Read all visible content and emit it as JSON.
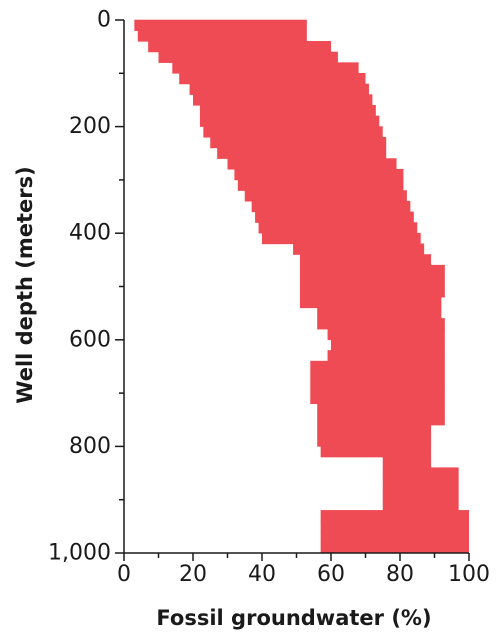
{
  "chart_data": {
    "type": "area",
    "title": "",
    "xlabel": "Fossil groundwater (%)",
    "ylabel": "Well depth (meters)",
    "xlim": [
      0,
      100
    ],
    "ylim": [
      0,
      1000
    ],
    "y_inverted": true,
    "x_ticks": [
      "0",
      "20",
      "40",
      "60",
      "80",
      "100"
    ],
    "y_ticks": [
      "0",
      "200",
      "400",
      "600",
      "800",
      "1,000"
    ],
    "fill_color": "#ef4b54",
    "bin_size_m": 20,
    "depth_top_m": [
      0,
      20,
      40,
      60,
      80,
      100,
      120,
      140,
      160,
      180,
      200,
      220,
      240,
      260,
      280,
      300,
      320,
      340,
      360,
      380,
      400,
      420,
      440,
      460,
      480,
      500,
      520,
      540,
      560,
      580,
      600,
      620,
      640,
      660,
      680,
      700,
      720,
      740,
      760,
      780,
      800,
      820,
      840,
      860,
      880,
      900,
      920,
      940,
      960,
      980
    ],
    "lower_pct": [
      3,
      4,
      7,
      10,
      14,
      16,
      19,
      20,
      22,
      22,
      23,
      25,
      27,
      30,
      32,
      33,
      35,
      37,
      38,
      39,
      40,
      49,
      51,
      51,
      51,
      51,
      51,
      56,
      56,
      59,
      60,
      59,
      54,
      54,
      54,
      54,
      56,
      56,
      56,
      56,
      57,
      75,
      75,
      75,
      75,
      75,
      57,
      57,
      57,
      57
    ],
    "upper_pct": [
      53,
      53,
      60,
      62,
      68,
      70,
      71,
      72,
      73,
      74,
      75,
      76,
      76,
      79,
      81,
      81,
      82,
      83,
      84,
      85,
      86,
      87,
      89,
      93,
      93,
      93,
      92,
      92,
      93,
      93,
      93,
      93,
      93,
      93,
      93,
      93,
      93,
      93,
      89,
      89,
      89,
      89,
      97,
      97,
      97,
      97,
      100,
      100,
      100,
      100
    ]
  }
}
